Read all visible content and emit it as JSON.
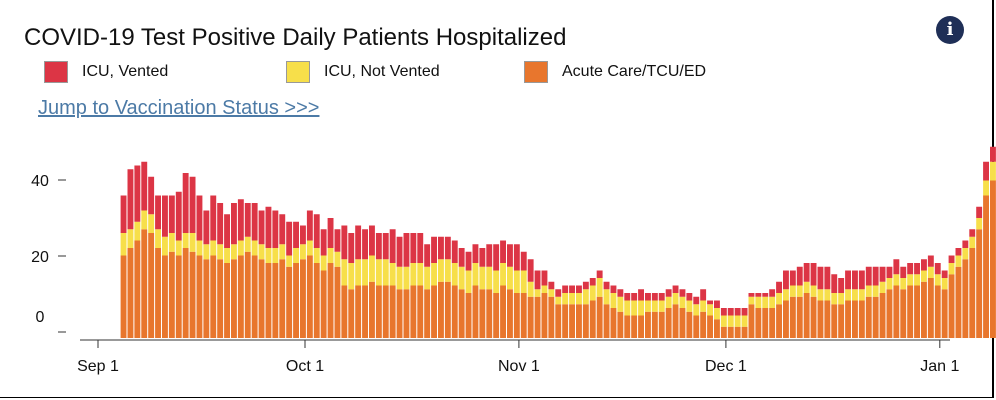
{
  "header": {
    "title": "COVID-19 Test Positive Daily Patients Hospitalized",
    "info_icon": "info-icon",
    "jump_link": "Jump to Vaccination Status >>>"
  },
  "chart_data": {
    "type": "bar",
    "stacked": true,
    "title": "COVID-19 Test Positive Daily Patients Hospitalized",
    "xlabel": "",
    "ylabel": "",
    "ylim": [
      0,
      52
    ],
    "yticks": [
      0,
      20,
      40
    ],
    "xticks": [
      {
        "label": "Sep 1",
        "day": 0
      },
      {
        "label": "Oct 1",
        "day": 30
      },
      {
        "label": "Nov 1",
        "day": 61
      },
      {
        "label": "Dec 1",
        "day": 91
      },
      {
        "label": "Jan 1",
        "day": 122
      }
    ],
    "first_day": 4,
    "legend": [
      {
        "name": "ICU, Vented",
        "color": "#dc3545"
      },
      {
        "name": "ICU, Not Vented",
        "color": "#f7df4a"
      },
      {
        "name": "Acute Care/TCU/ED",
        "color": "#e8762d"
      }
    ],
    "series": [
      {
        "name": "Acute Care/TCU/ED",
        "color": "#e8762d",
        "values": [
          22,
          24,
          26,
          29,
          28,
          24,
          22,
          23,
          22,
          24,
          23,
          22,
          21,
          22,
          21,
          20,
          21,
          22,
          23,
          22,
          21,
          20,
          20,
          21,
          19,
          20,
          21,
          22,
          20,
          18,
          20,
          19,
          14,
          13,
          14,
          14,
          15,
          14,
          14,
          14,
          13,
          13,
          14,
          14,
          13,
          14,
          15,
          15,
          14,
          13,
          12,
          14,
          13,
          13,
          12,
          14,
          13,
          12,
          12,
          11,
          11,
          12,
          11,
          9,
          9,
          9,
          9,
          9,
          10,
          11,
          9,
          8,
          7,
          6,
          6,
          6,
          7,
          7,
          7,
          8,
          9,
          8,
          7,
          6,
          7,
          6,
          5,
          3,
          3,
          3,
          3,
          9,
          8,
          8,
          8,
          9,
          10,
          11,
          11,
          12,
          11,
          10,
          10,
          9,
          9,
          10,
          10,
          10,
          11,
          11,
          12,
          13,
          14,
          13,
          14,
          14,
          15,
          16,
          14,
          13,
          17,
          19,
          21,
          24,
          29,
          38,
          42,
          41,
          40
        ]
      },
      {
        "name": "ICU, Not Vented",
        "color": "#f7df4a",
        "values": [
          6,
          5,
          5,
          5,
          5,
          5,
          5,
          5,
          4,
          4,
          5,
          4,
          4,
          4,
          4,
          4,
          4,
          4,
          4,
          4,
          4,
          4,
          4,
          4,
          3,
          4,
          4,
          4,
          4,
          4,
          4,
          4,
          7,
          7,
          7,
          7,
          7,
          7,
          7,
          6,
          6,
          6,
          6,
          6,
          6,
          6,
          6,
          6,
          6,
          6,
          6,
          6,
          6,
          6,
          6,
          6,
          6,
          6,
          6,
          4,
          2,
          2,
          2,
          2,
          3,
          3,
          3,
          4,
          4,
          5,
          4,
          4,
          4,
          4,
          4,
          4,
          3,
          3,
          3,
          3,
          3,
          3,
          3,
          3,
          3,
          3,
          3,
          3,
          3,
          3,
          3,
          2,
          3,
          3,
          3,
          3,
          3,
          3,
          3,
          3,
          3,
          3,
          3,
          3,
          3,
          3,
          3,
          3,
          3,
          3,
          3,
          3,
          3,
          3,
          3,
          3,
          3,
          3,
          3,
          3,
          3,
          3,
          3,
          3,
          3,
          4,
          5,
          5,
          5
        ]
      },
      {
        "name": "ICU, Vented",
        "color": "#dc3545",
        "values": [
          10,
          16,
          15,
          13,
          10,
          9,
          11,
          10,
          13,
          16,
          15,
          12,
          9,
          12,
          11,
          9,
          11,
          11,
          9,
          10,
          9,
          11,
          10,
          8,
          9,
          7,
          5,
          8,
          9,
          7,
          8,
          6,
          9,
          8,
          9,
          8,
          8,
          7,
          7,
          9,
          8,
          9,
          8,
          8,
          6,
          7,
          6,
          6,
          6,
          5,
          5,
          5,
          5,
          6,
          7,
          6,
          6,
          7,
          5,
          6,
          5,
          4,
          2,
          2,
          2,
          2,
          2,
          2,
          2,
          2,
          2,
          2,
          2,
          2,
          2,
          3,
          2,
          2,
          2,
          2,
          2,
          2,
          2,
          2,
          3,
          1,
          2,
          2,
          2,
          2,
          2,
          1,
          1,
          1,
          2,
          3,
          5,
          4,
          5,
          5,
          6,
          6,
          6,
          5,
          4,
          5,
          5,
          5,
          5,
          5,
          4,
          3,
          4,
          3,
          3,
          3,
          3,
          3,
          3,
          2,
          2,
          2,
          2,
          2,
          3,
          5,
          4,
          4,
          4
        ]
      }
    ]
  }
}
